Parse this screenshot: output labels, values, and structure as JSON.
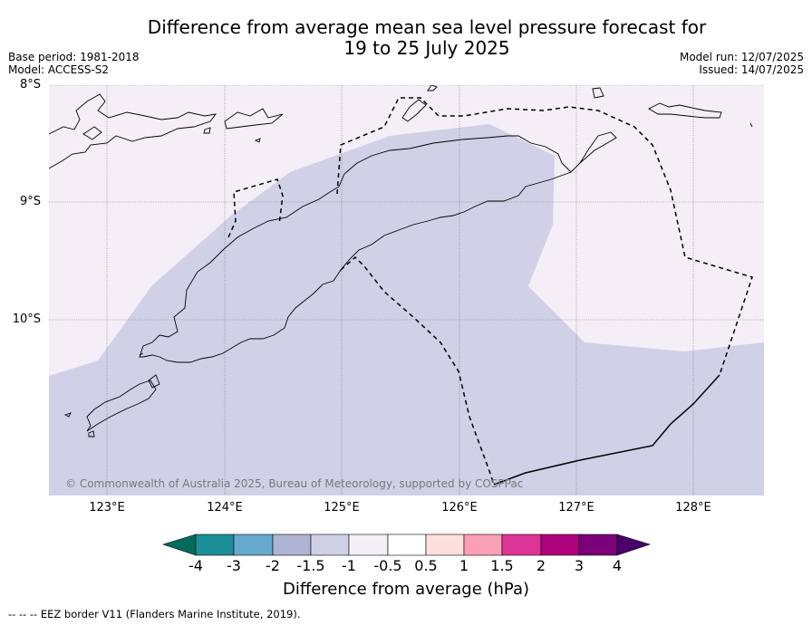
{
  "header": {
    "title_line1": "Difference from average mean sea level pressure forecast for",
    "title_line2": "19 to 25 July 2025",
    "base_period": "Base period: 1981-2018",
    "model": "Model: ACCESS-S2",
    "model_run": "Model run: 12/07/2025",
    "issued": "Issued: 14/07/2025"
  },
  "map": {
    "lat_labels": [
      "8°S",
      "9°S",
      "10°S"
    ],
    "lon_labels": [
      "123°E",
      "124°E",
      "125°E",
      "126°E",
      "127°E",
      "128°E"
    ],
    "copyright": "© Commonwealth of Australia 2025, Bureau of Meteorology, supported by COSPPac",
    "anomaly_classes_shown": [
      "-1.5 to -1",
      "-1 to -0.5"
    ],
    "colors": {
      "class_-1.5_-1": "#d0d1e6",
      "class_-1_-0.5": "#f4eef6",
      "coastline": "#000000",
      "eez_border": "#000000"
    }
  },
  "colorbar": {
    "title": "Difference from average (hPa)",
    "ticks": [
      "-4",
      "-3",
      "-2",
      "-1.5",
      "-1",
      "-0.5",
      "0.5",
      "1",
      "1.5",
      "2",
      "3",
      "4"
    ],
    "colors": [
      "#016c59",
      "#1c9099",
      "#67a9cf",
      "#b0b4d3",
      "#d0d1e6",
      "#f4eef6",
      "#ffffff",
      "#fde0dd",
      "#fa9fb5",
      "#dd3497",
      "#ae017e",
      "#7a0177",
      "#49006a"
    ]
  },
  "footnote": "--  --  -- EEZ border V11 (Flanders Marine Institute, 2019)."
}
